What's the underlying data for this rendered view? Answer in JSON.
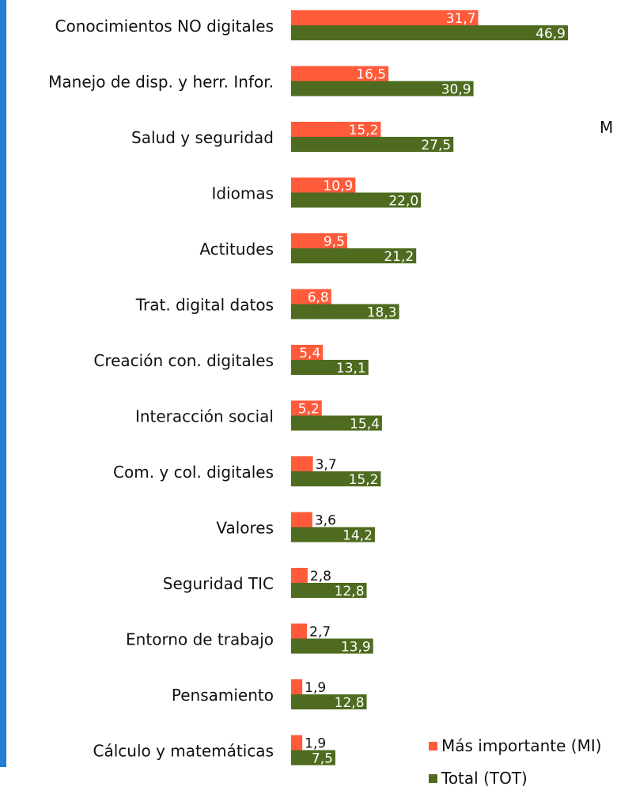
{
  "colors": {
    "mi": "#ff5b3b",
    "tot": "#4e6b1f",
    "accent_strip": "#1f7fd0"
  },
  "clipped_text": "M",
  "chart_data": {
    "type": "bar",
    "orientation": "horizontal",
    "categories": [
      "Conocimientos NO digitales",
      "Manejo de disp. y  herr. Infor.",
      "Salud y seguridad",
      "Idiomas",
      "Actitudes",
      "Trat. digital datos",
      "Creación con. digitales",
      "Interacción social",
      "Com. y col. digitales",
      "Valores",
      "Seguridad TIC",
      "Entorno de trabajo",
      "Pensamiento",
      "Cálculo y matemáticas"
    ],
    "series": [
      {
        "name": "Más importante (MI)",
        "color": "#ff5b3b",
        "values": [
          31.7,
          16.5,
          15.2,
          10.9,
          9.5,
          6.8,
          5.4,
          5.2,
          3.7,
          3.6,
          2.8,
          2.7,
          1.9,
          1.9
        ],
        "labels": [
          "31,7",
          "16,5",
          "15,2",
          "10,9",
          "9,5",
          "6,8",
          "5,4",
          "5,2",
          "3,7",
          "3,6",
          "2,8",
          "2,7",
          "1,9",
          "1,9"
        ]
      },
      {
        "name": "Total (TOT)",
        "color": "#4e6b1f",
        "values": [
          46.9,
          30.9,
          27.5,
          22.0,
          21.2,
          18.3,
          13.1,
          15.4,
          15.2,
          14.2,
          12.8,
          13.9,
          12.8,
          7.5
        ],
        "labels": [
          "46,9",
          "30,9",
          "27,5",
          "22,0",
          "21,2",
          "18,3",
          "13,1",
          "15,4",
          "15,2",
          "14,2",
          "12,8",
          "13,9",
          "12,8",
          "7,5"
        ]
      }
    ],
    "legend_position": "bottom-right",
    "grid": false,
    "axis_visible": false
  }
}
